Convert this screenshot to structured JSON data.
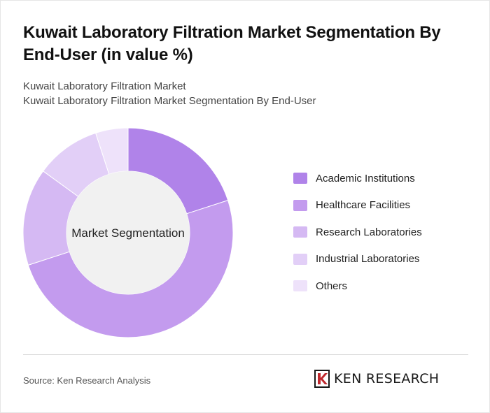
{
  "title": "Kuwait Laboratory Filtration Market Segmentation By End-User (in value %)",
  "subtitle_line1": "Kuwait Laboratory Filtration Market",
  "subtitle_line2": "Kuwait Laboratory Filtration Market Segmentation By End-User",
  "source": "Source: Ken Research Analysis",
  "brand": "KEN RESEARCH",
  "chart_data": {
    "type": "pie",
    "center_label": "Market Segmentation",
    "categories": [
      "Academic Institutions",
      "Healthcare Facilities",
      "Research Laboratories",
      "Industrial Laboratories",
      "Others"
    ],
    "values": [
      20,
      50,
      15,
      10,
      5
    ],
    "colors": [
      "#b083e9",
      "#c39bee",
      "#d5b9f3",
      "#e2cff7",
      "#eee2fa"
    ],
    "legend_position": "right"
  }
}
